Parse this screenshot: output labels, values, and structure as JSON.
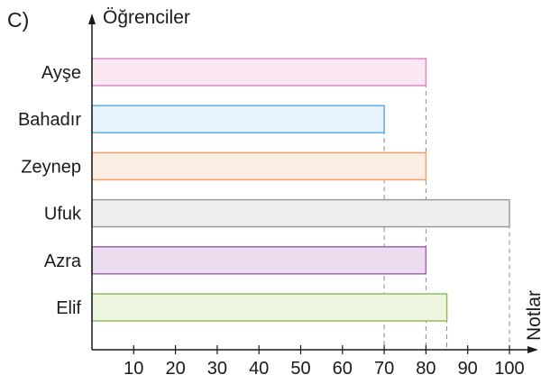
{
  "option_label": "C)",
  "chart_data": {
    "type": "bar",
    "orientation": "horizontal",
    "ylabel": "Öğrenciler",
    "xlabel": "Notlar",
    "categories": [
      "Ayşe",
      "Bahadır",
      "Zeynep",
      "Ufuk",
      "Azra",
      "Elif"
    ],
    "values": [
      80,
      70,
      80,
      100,
      80,
      85
    ],
    "xlim": [
      0,
      100
    ],
    "xticks": [
      10,
      20,
      30,
      40,
      50,
      60,
      70,
      80,
      90,
      100
    ],
    "grid": false,
    "guide_lines": "dashed vertical lines at bar ends",
    "bar_colors": [
      {
        "fill": "#fce8f3",
        "stroke": "#e089c2"
      },
      {
        "fill": "#e6f2fc",
        "stroke": "#5aaee6"
      },
      {
        "fill": "#fdeee3",
        "stroke": "#f0a06a"
      },
      {
        "fill": "#eeeeee",
        "stroke": "#9a9a9a"
      },
      {
        "fill": "#ecdcef",
        "stroke": "#a066b0"
      },
      {
        "fill": "#eef6e0",
        "stroke": "#8cc060"
      }
    ]
  }
}
